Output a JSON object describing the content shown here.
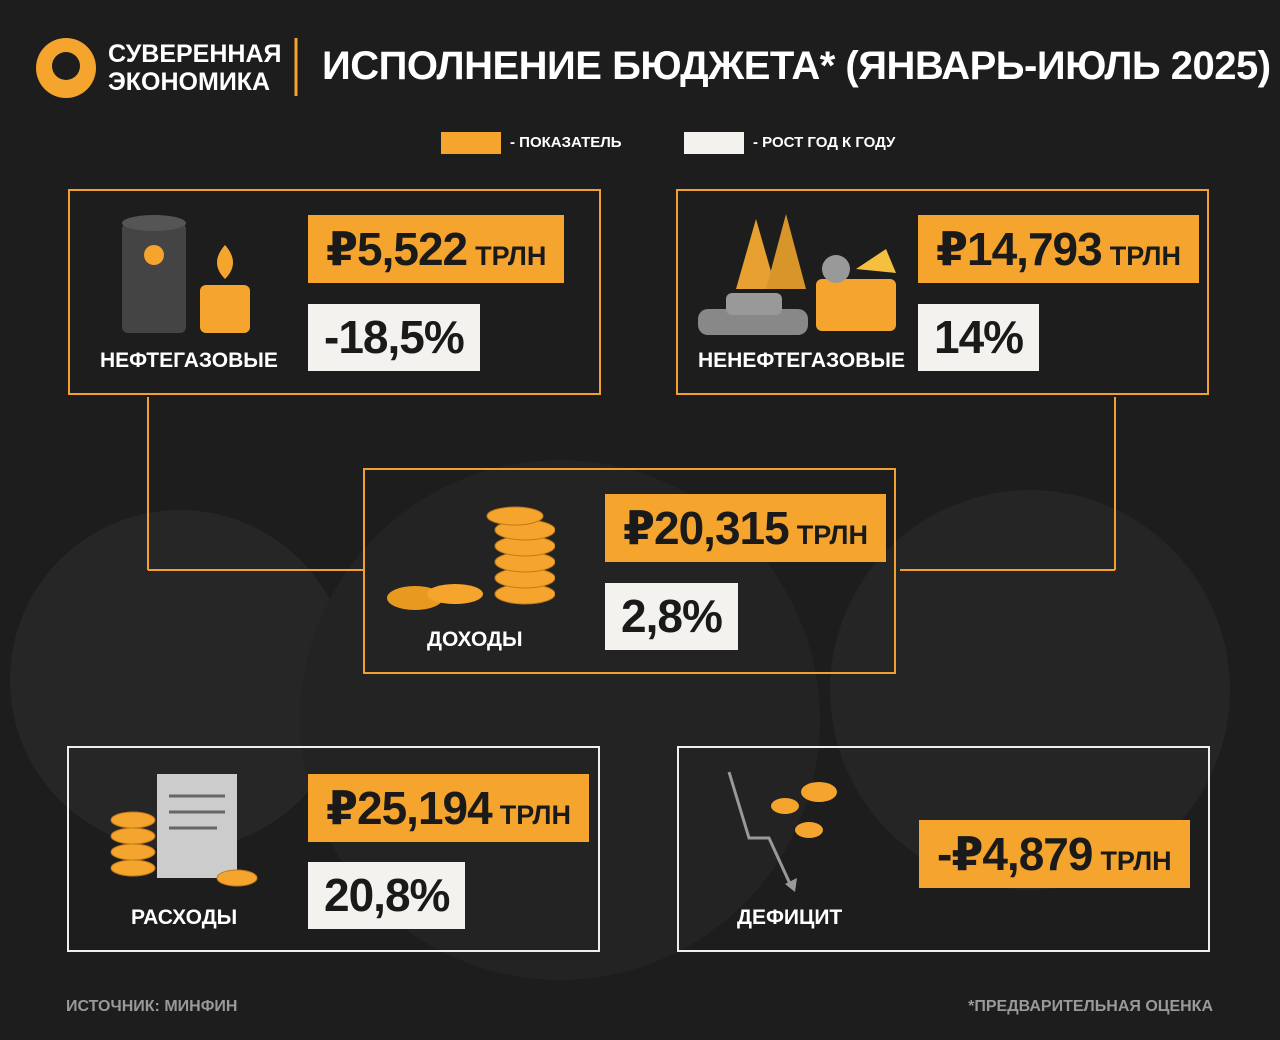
{
  "logo": {
    "line1": "СУВЕРЕННАЯ",
    "line2": "ЭКОНОМИКА"
  },
  "title": "ИСПОЛНЕНИЕ БЮДЖЕТА* (ЯНВАРЬ-ИЮЛЬ 2025)",
  "legend": {
    "indicator": "- ПОКАЗАТЕЛЬ",
    "growth": "- РОСТ ГОД К ГОДУ"
  },
  "cards": [
    {
      "label": "НЕФТЕГАЗОВЫЕ",
      "value": "₽5,522",
      "unit": "ТРЛН",
      "growth": "-18,5%"
    },
    {
      "label": "НЕНЕФТЕГАЗОВЫЕ",
      "value": "₽14,793",
      "unit": "ТРЛН",
      "growth": "14%"
    },
    {
      "label": "ДОХОДЫ",
      "value": "₽20,315",
      "unit": "ТРЛН",
      "growth": "2,8%"
    },
    {
      "label": "РАСХОДЫ",
      "value": "₽25,194",
      "unit": "ТРЛН",
      "growth": "20,8%"
    },
    {
      "label": "ДЕФИЦИТ",
      "value": "-₽4,879",
      "unit": "ТРЛН"
    }
  ],
  "footer": {
    "source": "ИСТОЧНИК: МИНФИН",
    "note": "*ПРЕДВАРИТЕЛЬНАЯ ОЦЕНКА"
  }
}
